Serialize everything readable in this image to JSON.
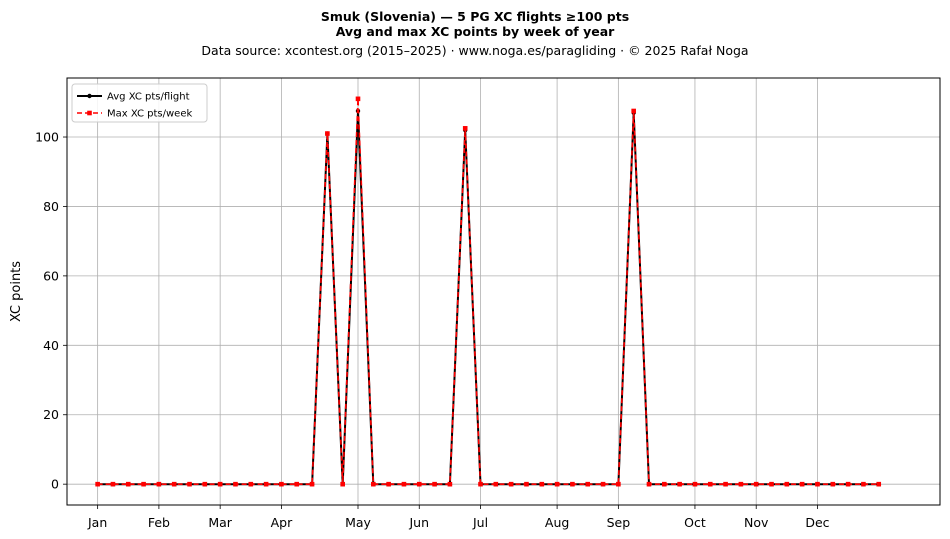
{
  "chart_data": {
    "type": "line",
    "title_line1": "Smuk (Slovenia)  —  5 PG XC flights ≥100 pts",
    "title_line2": "Avg and max XC points by week of year",
    "subtitle": "Data source: xcontest.org (2015–2025)  ·  www.noga.es/paragliding  ·  © 2025 Rafał Noga",
    "xlabel": "",
    "ylabel": "XC points",
    "ylim": [
      -6,
      117
    ],
    "yticks": [
      0,
      20,
      40,
      60,
      80,
      100
    ],
    "x_range": [
      -2,
      55
    ],
    "month_ticks": [
      {
        "label": "Jan",
        "week": 0
      },
      {
        "label": "Feb",
        "week": 4
      },
      {
        "label": "Mar",
        "week": 8
      },
      {
        "label": "Apr",
        "week": 12
      },
      {
        "label": "May",
        "week": 17
      },
      {
        "label": "Jun",
        "week": 21
      },
      {
        "label": "Jul",
        "week": 25
      },
      {
        "label": "Aug",
        "week": 30
      },
      {
        "label": "Sep",
        "week": 34
      },
      {
        "label": "Oct",
        "week": 39
      },
      {
        "label": "Nov",
        "week": 43
      },
      {
        "label": "Dec",
        "week": 47
      }
    ],
    "grid": true,
    "legend_placement": "top-left",
    "x": [
      0,
      1,
      2,
      3,
      4,
      5,
      6,
      7,
      8,
      9,
      10,
      11,
      12,
      13,
      14,
      15,
      16,
      17,
      18,
      19,
      20,
      21,
      22,
      23,
      24,
      25,
      26,
      27,
      28,
      29,
      30,
      31,
      32,
      33,
      34,
      35,
      36,
      37,
      38,
      39,
      40,
      41,
      42,
      43,
      44,
      45,
      46,
      47,
      48,
      49,
      50,
      51
    ],
    "series": [
      {
        "name": "Avg XC pts/flight",
        "color": "#000000",
        "style": "solid-dot",
        "values": [
          0,
          0,
          0,
          0,
          0,
          0,
          0,
          0,
          0,
          0,
          0,
          0,
          0,
          0,
          0,
          101,
          0,
          107.5,
          0,
          0,
          0,
          0,
          0,
          0,
          102,
          0,
          0,
          0,
          0,
          0,
          0,
          0,
          0,
          0,
          0,
          107,
          0,
          0,
          0,
          0,
          0,
          0,
          0,
          0,
          0,
          0,
          0,
          0,
          0,
          0,
          0,
          0
        ]
      },
      {
        "name": "Max XC pts/week",
        "color": "#ff0000",
        "style": "dashed-square",
        "values": [
          0,
          0,
          0,
          0,
          0,
          0,
          0,
          0,
          0,
          0,
          0,
          0,
          0,
          0,
          0,
          101,
          0,
          111,
          0,
          0,
          0,
          0,
          0,
          0,
          102.5,
          0,
          0,
          0,
          0,
          0,
          0,
          0,
          0,
          0,
          0,
          107.5,
          0,
          0,
          0,
          0,
          0,
          0,
          0,
          0,
          0,
          0,
          0,
          0,
          0,
          0,
          0,
          0
        ]
      }
    ]
  }
}
